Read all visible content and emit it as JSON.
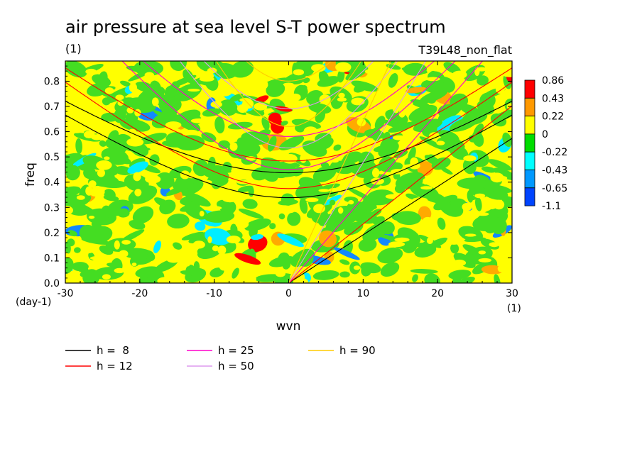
{
  "chart_data": {
    "type": "heatmap",
    "title": "air pressure at sea level S-T power spectrum",
    "title_units": "(1)",
    "experiment": "T39L48_non_flat",
    "xlabel": "wvn",
    "ylabel": "freq",
    "x_units": "(1)",
    "y_units": "(day-1)",
    "xlim": [
      -30,
      30
    ],
    "ylim": [
      0,
      0.88
    ],
    "x_ticks": [
      -30,
      -20,
      -10,
      0,
      10,
      20,
      30
    ],
    "x_tick_labels": [
      "-30",
      "-20",
      "-10",
      "0",
      "10",
      "20",
      "30"
    ],
    "y_ticks": [
      0,
      0.1,
      0.2,
      0.3,
      0.4,
      0.5,
      0.6,
      0.7,
      0.8
    ],
    "y_tick_labels": [
      "0.0",
      "0.1",
      "0.2",
      "0.3",
      "0.4",
      "0.5",
      "0.6",
      "0.7",
      "0.8"
    ],
    "colorbar": {
      "labels": [
        "0.86",
        "0.43",
        "0.22",
        "0",
        "-0.22",
        "-0.43",
        "-0.65",
        "-1.1"
      ],
      "colors": [
        "#ff0000",
        "#ff9900",
        "#ffff00",
        "#00dd00",
        "#00ffff",
        "#0099ff",
        "#0044ff"
      ]
    },
    "background_colors": {
      "yellow": "#ffff00",
      "green": "#44dd22",
      "orange": "#ffaa00",
      "cyan": "#00eeff",
      "blue": "#1188ff",
      "red": "#ff0000"
    },
    "dispersion_curves": [
      {
        "name": "h = 8",
        "label": "h =  8",
        "h": 8,
        "color": "#000000"
      },
      {
        "name": "h = 12",
        "label": "h = 12",
        "h": 12,
        "color": "#ff0000"
      },
      {
        "name": "h = 25",
        "label": "h = 25",
        "h": 25,
        "color": "#ff00cc"
      },
      {
        "name": "h = 50",
        "label": "h = 50",
        "h": 50,
        "color": "#dd99ee"
      },
      {
        "name": "h = 90",
        "label": "h = 90",
        "h": 90,
        "color": "#ffcc00"
      }
    ]
  }
}
